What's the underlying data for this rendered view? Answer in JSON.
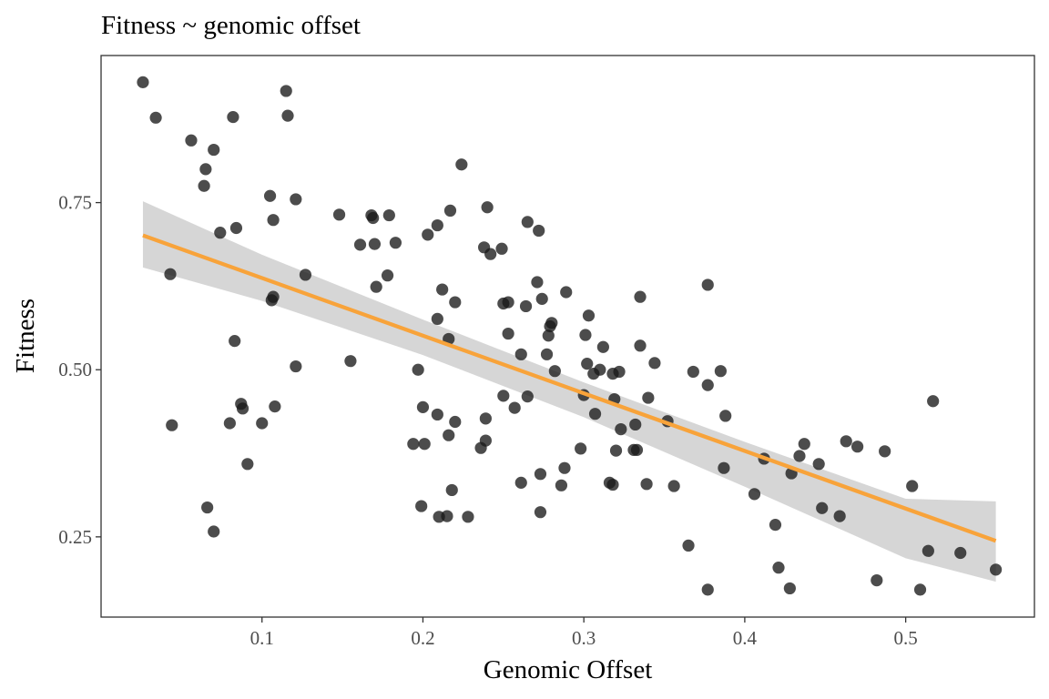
{
  "chart_data": {
    "type": "scatter",
    "title": "Fitness ~ genomic offset",
    "xlabel": "Genomic Offset",
    "ylabel": "Fitness",
    "xlim": [
      0.0,
      0.58
    ],
    "ylim": [
      0.13,
      0.97
    ],
    "x_ticks": [
      0.1,
      0.2,
      0.3,
      0.4,
      0.5
    ],
    "x_tick_labels": [
      "0.1",
      "0.2",
      "0.3",
      "0.4",
      "0.5"
    ],
    "y_ticks": [
      0.25,
      0.5,
      0.75
    ],
    "y_tick_labels": [
      "0.25",
      "0.50",
      "0.75"
    ],
    "grid": false,
    "legend": "none",
    "colors": {
      "points": "#1a1a1a",
      "fit_line": "#f8a33a",
      "confidence_band": "#d4d4d4",
      "panel_border": "#333333"
    },
    "points": [
      {
        "x": 0.026,
        "y": 0.93
      },
      {
        "x": 0.034,
        "y": 0.877
      },
      {
        "x": 0.043,
        "y": 0.643
      },
      {
        "x": 0.044,
        "y": 0.417
      },
      {
        "x": 0.056,
        "y": 0.843
      },
      {
        "x": 0.064,
        "y": 0.775
      },
      {
        "x": 0.065,
        "y": 0.8
      },
      {
        "x": 0.066,
        "y": 0.294
      },
      {
        "x": 0.07,
        "y": 0.829
      },
      {
        "x": 0.07,
        "y": 0.258
      },
      {
        "x": 0.074,
        "y": 0.705
      },
      {
        "x": 0.08,
        "y": 0.42
      },
      {
        "x": 0.082,
        "y": 0.878
      },
      {
        "x": 0.083,
        "y": 0.543
      },
      {
        "x": 0.084,
        "y": 0.712
      },
      {
        "x": 0.087,
        "y": 0.449
      },
      {
        "x": 0.088,
        "y": 0.442
      },
      {
        "x": 0.091,
        "y": 0.359
      },
      {
        "x": 0.1,
        "y": 0.42
      },
      {
        "x": 0.105,
        "y": 0.76
      },
      {
        "x": 0.106,
        "y": 0.604
      },
      {
        "x": 0.107,
        "y": 0.609
      },
      {
        "x": 0.107,
        "y": 0.724
      },
      {
        "x": 0.108,
        "y": 0.445
      },
      {
        "x": 0.115,
        "y": 0.917
      },
      {
        "x": 0.116,
        "y": 0.88
      },
      {
        "x": 0.121,
        "y": 0.755
      },
      {
        "x": 0.121,
        "y": 0.505
      },
      {
        "x": 0.127,
        "y": 0.642
      },
      {
        "x": 0.148,
        "y": 0.732
      },
      {
        "x": 0.155,
        "y": 0.513
      },
      {
        "x": 0.161,
        "y": 0.687
      },
      {
        "x": 0.168,
        "y": 0.731
      },
      {
        "x": 0.169,
        "y": 0.727
      },
      {
        "x": 0.17,
        "y": 0.688
      },
      {
        "x": 0.171,
        "y": 0.624
      },
      {
        "x": 0.178,
        "y": 0.641
      },
      {
        "x": 0.179,
        "y": 0.731
      },
      {
        "x": 0.183,
        "y": 0.69
      },
      {
        "x": 0.194,
        "y": 0.389
      },
      {
        "x": 0.197,
        "y": 0.5
      },
      {
        "x": 0.199,
        "y": 0.296
      },
      {
        "x": 0.2,
        "y": 0.444
      },
      {
        "x": 0.201,
        "y": 0.389
      },
      {
        "x": 0.203,
        "y": 0.702
      },
      {
        "x": 0.209,
        "y": 0.433
      },
      {
        "x": 0.209,
        "y": 0.716
      },
      {
        "x": 0.209,
        "y": 0.576
      },
      {
        "x": 0.21,
        "y": 0.28
      },
      {
        "x": 0.212,
        "y": 0.62
      },
      {
        "x": 0.215,
        "y": 0.281
      },
      {
        "x": 0.216,
        "y": 0.402
      },
      {
        "x": 0.216,
        "y": 0.546
      },
      {
        "x": 0.217,
        "y": 0.738
      },
      {
        "x": 0.218,
        "y": 0.32
      },
      {
        "x": 0.22,
        "y": 0.422
      },
      {
        "x": 0.22,
        "y": 0.601
      },
      {
        "x": 0.224,
        "y": 0.807
      },
      {
        "x": 0.228,
        "y": 0.28
      },
      {
        "x": 0.236,
        "y": 0.383
      },
      {
        "x": 0.238,
        "y": 0.683
      },
      {
        "x": 0.239,
        "y": 0.394
      },
      {
        "x": 0.239,
        "y": 0.427
      },
      {
        "x": 0.24,
        "y": 0.743
      },
      {
        "x": 0.242,
        "y": 0.673
      },
      {
        "x": 0.249,
        "y": 0.681
      },
      {
        "x": 0.25,
        "y": 0.461
      },
      {
        "x": 0.25,
        "y": 0.599
      },
      {
        "x": 0.253,
        "y": 0.554
      },
      {
        "x": 0.253,
        "y": 0.601
      },
      {
        "x": 0.257,
        "y": 0.443
      },
      {
        "x": 0.261,
        "y": 0.331
      },
      {
        "x": 0.261,
        "y": 0.523
      },
      {
        "x": 0.264,
        "y": 0.595
      },
      {
        "x": 0.265,
        "y": 0.46
      },
      {
        "x": 0.265,
        "y": 0.721
      },
      {
        "x": 0.271,
        "y": 0.631
      },
      {
        "x": 0.272,
        "y": 0.708
      },
      {
        "x": 0.273,
        "y": 0.287
      },
      {
        "x": 0.273,
        "y": 0.344
      },
      {
        "x": 0.274,
        "y": 0.606
      },
      {
        "x": 0.277,
        "y": 0.523
      },
      {
        "x": 0.278,
        "y": 0.551
      },
      {
        "x": 0.279,
        "y": 0.565
      },
      {
        "x": 0.28,
        "y": 0.57
      },
      {
        "x": 0.282,
        "y": 0.498
      },
      {
        "x": 0.286,
        "y": 0.327
      },
      {
        "x": 0.288,
        "y": 0.353
      },
      {
        "x": 0.289,
        "y": 0.616
      },
      {
        "x": 0.298,
        "y": 0.382
      },
      {
        "x": 0.3,
        "y": 0.462
      },
      {
        "x": 0.301,
        "y": 0.552
      },
      {
        "x": 0.302,
        "y": 0.509
      },
      {
        "x": 0.303,
        "y": 0.581
      },
      {
        "x": 0.306,
        "y": 0.494
      },
      {
        "x": 0.307,
        "y": 0.434
      },
      {
        "x": 0.31,
        "y": 0.5
      },
      {
        "x": 0.312,
        "y": 0.534
      },
      {
        "x": 0.316,
        "y": 0.331
      },
      {
        "x": 0.318,
        "y": 0.328
      },
      {
        "x": 0.318,
        "y": 0.494
      },
      {
        "x": 0.319,
        "y": 0.456
      },
      {
        "x": 0.32,
        "y": 0.379
      },
      {
        "x": 0.322,
        "y": 0.497
      },
      {
        "x": 0.323,
        "y": 0.411
      },
      {
        "x": 0.331,
        "y": 0.38
      },
      {
        "x": 0.332,
        "y": 0.418
      },
      {
        "x": 0.333,
        "y": 0.38
      },
      {
        "x": 0.335,
        "y": 0.536
      },
      {
        "x": 0.335,
        "y": 0.609
      },
      {
        "x": 0.339,
        "y": 0.329
      },
      {
        "x": 0.34,
        "y": 0.458
      },
      {
        "x": 0.344,
        "y": 0.51
      },
      {
        "x": 0.352,
        "y": 0.423
      },
      {
        "x": 0.356,
        "y": 0.326
      },
      {
        "x": 0.365,
        "y": 0.237
      },
      {
        "x": 0.368,
        "y": 0.497
      },
      {
        "x": 0.377,
        "y": 0.171
      },
      {
        "x": 0.377,
        "y": 0.477
      },
      {
        "x": 0.377,
        "y": 0.627
      },
      {
        "x": 0.385,
        "y": 0.498
      },
      {
        "x": 0.387,
        "y": 0.353
      },
      {
        "x": 0.388,
        "y": 0.431
      },
      {
        "x": 0.406,
        "y": 0.314
      },
      {
        "x": 0.412,
        "y": 0.367
      },
      {
        "x": 0.419,
        "y": 0.268
      },
      {
        "x": 0.421,
        "y": 0.204
      },
      {
        "x": 0.428,
        "y": 0.173
      },
      {
        "x": 0.429,
        "y": 0.345
      },
      {
        "x": 0.434,
        "y": 0.371
      },
      {
        "x": 0.437,
        "y": 0.389
      },
      {
        "x": 0.446,
        "y": 0.359
      },
      {
        "x": 0.448,
        "y": 0.293
      },
      {
        "x": 0.459,
        "y": 0.281
      },
      {
        "x": 0.463,
        "y": 0.393
      },
      {
        "x": 0.47,
        "y": 0.385
      },
      {
        "x": 0.482,
        "y": 0.185
      },
      {
        "x": 0.487,
        "y": 0.378
      },
      {
        "x": 0.504,
        "y": 0.326
      },
      {
        "x": 0.509,
        "y": 0.171
      },
      {
        "x": 0.514,
        "y": 0.229
      },
      {
        "x": 0.517,
        "y": 0.453
      },
      {
        "x": 0.534,
        "y": 0.226
      },
      {
        "x": 0.556,
        "y": 0.201
      }
    ],
    "fit_line": {
      "x": [
        0.026,
        0.556
      ],
      "y": [
        0.701,
        0.244
      ]
    },
    "confidence_band": {
      "x": [
        0.026,
        0.1,
        0.2,
        0.3,
        0.4,
        0.5,
        0.556
      ],
      "lower": [
        0.653,
        0.603,
        0.522,
        0.429,
        0.325,
        0.218,
        0.183
      ],
      "upper": [
        0.752,
        0.672,
        0.575,
        0.481,
        0.392,
        0.307,
        0.303
      ]
    }
  }
}
